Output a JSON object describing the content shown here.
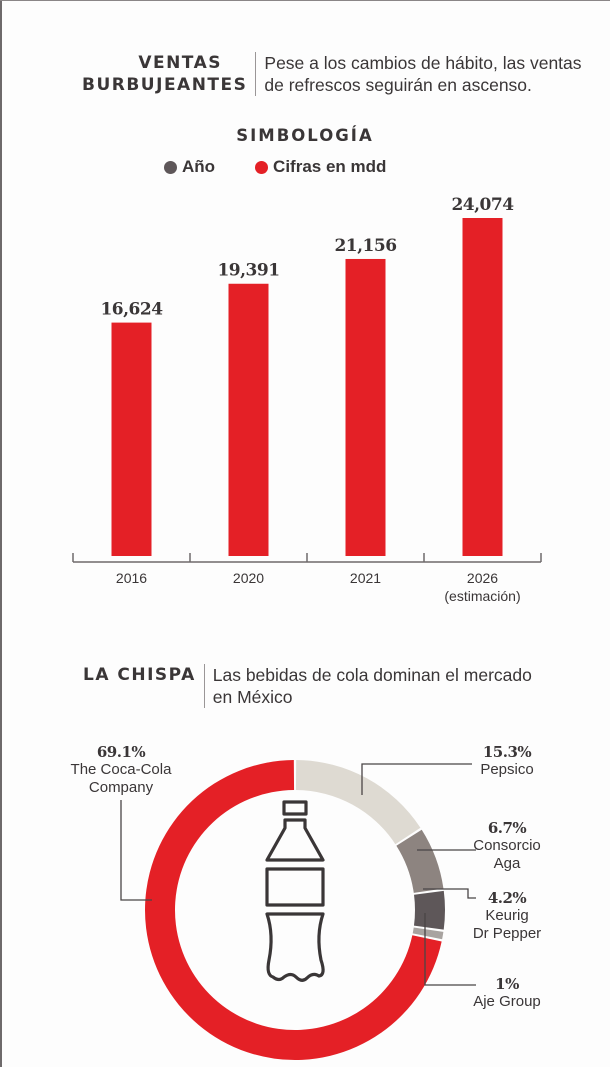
{
  "section1": {
    "kicker_line1": "VENTAS",
    "kicker_line2": "BURBUJEANTES",
    "dek_line1": "Pese a los cambios de hábito, las ventas",
    "dek_line2": "de refrescos seguirán en ascenso."
  },
  "legend": {
    "title": "SIMBOLOGÍA",
    "items": [
      {
        "label": "Año",
        "color": "#5e5759"
      },
      {
        "label": "Cifras en mdd",
        "color": "#e42026"
      }
    ]
  },
  "section2": {
    "kicker": "LA CHISPA",
    "dek_line1": "Las bebidas de cola dominan el mercado",
    "dek_line2": "en México"
  },
  "colors": {
    "bar": "#e42026",
    "axis": "#6e6a6b",
    "text": "#3a3637"
  },
  "chart_data": [
    {
      "type": "bar",
      "title": "Ventas burbujeantes",
      "xlabel": "",
      "ylabel": "Cifras en mdd",
      "categories": [
        "2016",
        "2020",
        "2021",
        "2026 (estimación)"
      ],
      "category_lines": [
        [
          "2016"
        ],
        [
          "2020"
        ],
        [
          "2021"
        ],
        [
          "2026",
          "(estimación)"
        ]
      ],
      "values": [
        16624,
        19391,
        21156,
        24074
      ],
      "value_labels": [
        "16,624",
        "19,391",
        "21,156",
        "24,074"
      ],
      "ylim": [
        0,
        24074
      ],
      "grid": false,
      "legend": "top-center"
    },
    {
      "type": "pie",
      "title": "La chispa",
      "donut": true,
      "slices": [
        {
          "name": "Pepsico",
          "name_lines": [
            "Pepsico"
          ],
          "value": 15.3,
          "label": "15.3%",
          "color": "#dedad2"
        },
        {
          "name": "Consorcio Aga",
          "name_lines": [
            "Consorcio",
            "Aga"
          ],
          "value": 6.7,
          "label": "6.7%",
          "color": "#8d8480"
        },
        {
          "name": "Keurig Dr Pepper",
          "name_lines": [
            "Keurig",
            "Dr Pepper"
          ],
          "value": 4.2,
          "label": "4.2%",
          "color": "#5e5759"
        },
        {
          "name": "Aje Group",
          "name_lines": [
            "Aje Group"
          ],
          "value": 1,
          "label": "1%",
          "color": "#a8a3a0"
        },
        {
          "name": "The Coca-Cola Company",
          "name_lines": [
            "The Coca-Cola",
            "Company"
          ],
          "value": 69.1,
          "label": "69.1%",
          "color": "#e42026"
        }
      ],
      "center_icon": "bottle-icon"
    }
  ]
}
